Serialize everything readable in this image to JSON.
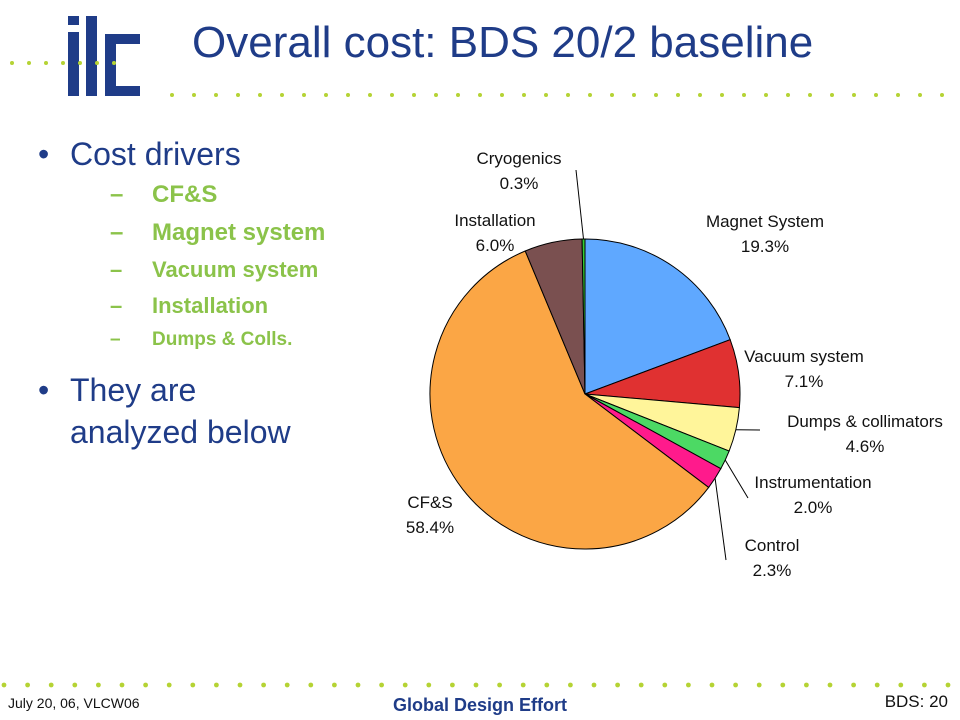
{
  "slide": {
    "logo_text": "ilc",
    "title": "Overall cost: BDS 20/2 baseline",
    "bullet1": "Cost drivers",
    "sub_items": [
      "CF&S",
      "Magnet system",
      "Vacuum system",
      "Installation",
      "Dumps & Colls."
    ],
    "bullet2_line1": "They are",
    "bullet2_line2": "analyzed below",
    "bullet_marker": "•",
    "dash_marker": "–"
  },
  "footer": {
    "left": "July 20, 06, VLCW06",
    "center": "Global Design Effort",
    "right": "BDS: 20"
  },
  "colors": {
    "title": "#1f3c88",
    "subitems": "#8bc34a",
    "dots": "#b5d334"
  },
  "chart_data": {
    "type": "pie",
    "start": "12 o'clock",
    "direction": "clockwise",
    "slices": [
      {
        "label": "Magnet System",
        "value": 19.3,
        "text": "19.3%",
        "color": "#5fa8ff"
      },
      {
        "label": "Vacuum system",
        "value": 7.1,
        "text": "7.1%",
        "color": "#e03131"
      },
      {
        "label": "Dumps & collimators",
        "value": 4.6,
        "text": "4.6%",
        "color": "#fff59a"
      },
      {
        "label": "Instrumentation",
        "value": 2.0,
        "text": "2.0%",
        "color": "#4cd964"
      },
      {
        "label": "Control",
        "value": 2.3,
        "text": "2.3%",
        "color": "#ff1a8c"
      },
      {
        "label": "CF&S",
        "value": 58.4,
        "text": "58.4%",
        "color": "#fba645"
      },
      {
        "label": "Installation",
        "value": 6.0,
        "text": "6.0%",
        "color": "#7a5050"
      },
      {
        "label": "Cryogenics",
        "value": 0.3,
        "text": "0.3%",
        "color": "#33cc33"
      }
    ]
  }
}
